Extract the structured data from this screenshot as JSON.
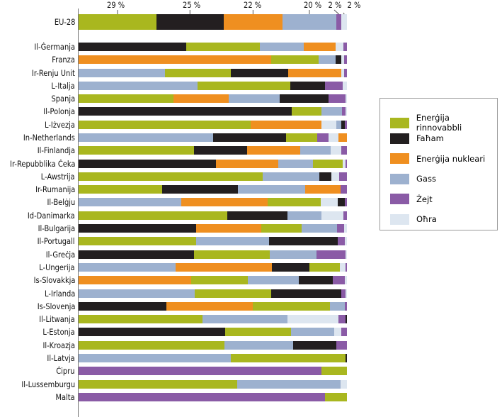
{
  "chart_data": {
    "type": "bar",
    "orientation": "horizontal",
    "stacked": true,
    "xlim": [
      0,
      100
    ],
    "colors": {
      "ren": "#a9b71f",
      "coal": "#231f20",
      "nuc": "#ef8f20",
      "gas": "#9db1cf",
      "oil": "#8a5ba6",
      "oth": "#dde6f0"
    },
    "legend": [
      {
        "key": "ren",
        "label": "Enerġija rinnovabbli"
      },
      {
        "key": "coal",
        "label": "Faħam"
      },
      {
        "key": "nuc",
        "label": "Enerġija nukleari"
      },
      {
        "key": "gas",
        "label": "Gass"
      },
      {
        "key": "oil",
        "label": "Żejt"
      },
      {
        "key": "oth",
        "label": "Oħra"
      }
    ],
    "legend_position": "right",
    "eu": {
      "label": "EU-28",
      "segments": [
        [
          "ren",
          29
        ],
        [
          "coal",
          25
        ],
        [
          "nuc",
          22
        ],
        [
          "gas",
          20
        ],
        [
          "oil",
          2
        ],
        [
          "oth",
          2
        ]
      ],
      "data_labels": [
        "29 %",
        "25 %",
        "22 %",
        "20 %",
        "2 %",
        "2 %"
      ]
    },
    "countries": [
      {
        "label": "Il-Ġermanja",
        "segments": [
          [
            "coal",
            40.2
          ],
          [
            "ren",
            27.4
          ],
          [
            "gas",
            16.3
          ],
          [
            "nuc",
            12.0
          ],
          [
            "oth",
            2.9
          ],
          [
            "oil",
            1.2
          ]
        ]
      },
      {
        "label": "Franza",
        "segments": [
          [
            "nuc",
            71.8
          ],
          [
            "ren",
            17.7
          ],
          [
            "gas",
            6.4
          ],
          [
            "coal",
            2.0
          ],
          [
            "oth",
            1.0
          ],
          [
            "oil",
            1.1
          ]
        ]
      },
      {
        "label": "Ir-Renju Unit",
        "segments": [
          [
            "gas",
            32.2
          ],
          [
            "ren",
            24.6
          ],
          [
            "coal",
            21.4
          ],
          [
            "nuc",
            19.7
          ],
          [
            "oth",
            1.0
          ],
          [
            "oil",
            1.1
          ]
        ]
      },
      {
        "label": "L-Italja",
        "segments": [
          [
            "gas",
            44.2
          ],
          [
            "ren",
            34.8
          ],
          [
            "coal",
            12.9
          ],
          [
            "oil",
            6.6
          ],
          [
            "oth",
            1.5
          ]
        ]
      },
      {
        "label": "Spanja",
        "segments": [
          [
            "ren",
            35.4
          ],
          [
            "nuc",
            20.5
          ],
          [
            "gas",
            19.1
          ],
          [
            "coal",
            18.2
          ],
          [
            "oil",
            6.4
          ],
          [
            "oth",
            0.4
          ]
        ]
      },
      {
        "label": "Il-Polonja",
        "segments": [
          [
            "coal",
            79.5
          ],
          [
            "ren",
            11.1
          ],
          [
            "gas",
            7.6
          ],
          [
            "oil",
            1.4
          ],
          [
            "oth",
            0.4
          ]
        ]
      },
      {
        "label": "L-Iżvezja",
        "segments": [
          [
            "ren",
            64.2
          ],
          [
            "nuc",
            26.4
          ],
          [
            "oth",
            5.5
          ],
          [
            "gas",
            1.9
          ],
          [
            "coal",
            1.2
          ],
          [
            "oil",
            0.8
          ]
        ]
      },
      {
        "label": "In-Netherlands",
        "segments": [
          [
            "gas",
            50.0
          ],
          [
            "coal",
            27.4
          ],
          [
            "ren",
            11.6
          ],
          [
            "oil",
            4.2
          ],
          [
            "oth",
            3.7
          ],
          [
            "nuc",
            3.1
          ]
        ]
      },
      {
        "label": "Il-Finlandja",
        "segments": [
          [
            "ren",
            43.1
          ],
          [
            "coal",
            19.8
          ],
          [
            "nuc",
            19.8
          ],
          [
            "gas",
            11.3
          ],
          [
            "oth",
            4.0
          ],
          [
            "oil",
            2.0
          ]
        ]
      },
      {
        "label": "Ir-Repubblika Ċeka",
        "segments": [
          [
            "coal",
            51.3
          ],
          [
            "nuc",
            23.1
          ],
          [
            "gas",
            13.0
          ],
          [
            "ren",
            11.1
          ],
          [
            "oth",
            1.0
          ],
          [
            "oil",
            0.5
          ]
        ]
      },
      {
        "label": "L-Awstrija",
        "segments": [
          [
            "ren",
            68.7
          ],
          [
            "gas",
            21.1
          ],
          [
            "coal",
            4.5
          ],
          [
            "oth",
            2.9
          ],
          [
            "oil",
            2.8
          ]
        ]
      },
      {
        "label": "Ir-Rumanija",
        "segments": [
          [
            "ren",
            31.2
          ],
          [
            "coal",
            28.3
          ],
          [
            "gas",
            25.0
          ],
          [
            "nuc",
            13.2
          ],
          [
            "oil",
            2.3
          ]
        ]
      },
      {
        "label": "Il-Belġju",
        "segments": [
          [
            "gas",
            38.3
          ],
          [
            "nuc",
            32.2
          ],
          [
            "ren",
            19.8
          ],
          [
            "oth",
            6.4
          ],
          [
            "coal",
            2.6
          ],
          [
            "oil",
            0.7
          ]
        ]
      },
      {
        "label": "Id-Danimarka",
        "segments": [
          [
            "ren",
            55.5
          ],
          [
            "coal",
            22.4
          ],
          [
            "gas",
            12.7
          ],
          [
            "oth",
            8.2
          ],
          [
            "oil",
            1.2
          ]
        ]
      },
      {
        "label": "Il-Bulgarija",
        "segments": [
          [
            "coal",
            43.9
          ],
          [
            "nuc",
            24.3
          ],
          [
            "ren",
            15.0
          ],
          [
            "gas",
            13.2
          ],
          [
            "oil",
            2.5
          ],
          [
            "oth",
            1.1
          ]
        ]
      },
      {
        "label": "Il-Portugall",
        "segments": [
          [
            "ren",
            43.9
          ],
          [
            "gas",
            27.2
          ],
          [
            "coal",
            25.6
          ],
          [
            "oil",
            2.5
          ],
          [
            "oth",
            0.8
          ]
        ]
      },
      {
        "label": "Il-Greċja",
        "segments": [
          [
            "coal",
            43.1
          ],
          [
            "ren",
            28.2
          ],
          [
            "gas",
            17.4
          ],
          [
            "oil",
            10.9
          ],
          [
            "oth",
            0.4
          ]
        ]
      },
      {
        "label": "L-Ungerija",
        "segments": [
          [
            "gas",
            36.2
          ],
          [
            "nuc",
            35.9
          ],
          [
            "coal",
            14.0
          ],
          [
            "ren",
            11.3
          ],
          [
            "oth",
            2.1
          ],
          [
            "oil",
            0.5
          ]
        ]
      },
      {
        "label": "Is-Slovakkja",
        "segments": [
          [
            "nuc",
            42.0
          ],
          [
            "ren",
            21.1
          ],
          [
            "gas",
            19.0
          ],
          [
            "coal",
            12.7
          ],
          [
            "oil",
            4.5
          ],
          [
            "oth",
            0.7
          ]
        ]
      },
      {
        "label": "L-Irlanda",
        "segments": [
          [
            "gas",
            43.4
          ],
          [
            "ren",
            28.5
          ],
          [
            "coal",
            26.1
          ],
          [
            "oil",
            1.6
          ],
          [
            "oth",
            0.4
          ]
        ]
      },
      {
        "label": "Is-Slovenja",
        "segments": [
          [
            "coal",
            32.8
          ],
          [
            "nuc",
            32.2
          ],
          [
            "ren",
            28.8
          ],
          [
            "gas",
            5.5
          ],
          [
            "oil",
            0.7
          ]
        ]
      },
      {
        "label": "Il-Litwanja",
        "segments": [
          [
            "ren",
            46.3
          ],
          [
            "gas",
            31.6
          ],
          [
            "oth",
            19.0
          ],
          [
            "oil",
            2.7
          ],
          [
            "coal",
            0.4
          ]
        ]
      },
      {
        "label": "L-Estonja",
        "segments": [
          [
            "coal",
            54.7
          ],
          [
            "ren",
            24.5
          ],
          [
            "gas",
            16.1
          ],
          [
            "oth",
            2.7
          ],
          [
            "oil",
            2.0
          ]
        ]
      },
      {
        "label": "Il-Kroazja",
        "segments": [
          [
            "ren",
            54.4
          ],
          [
            "gas",
            25.6
          ],
          [
            "coal",
            16.1
          ],
          [
            "oil",
            3.9
          ]
        ]
      },
      {
        "label": "Il-Latvja",
        "segments": [
          [
            "gas",
            56.8
          ],
          [
            "ren",
            42.8
          ],
          [
            "coal",
            0.4
          ]
        ]
      },
      {
        "label": "Ċipru",
        "segments": [
          [
            "oil",
            90.6
          ],
          [
            "ren",
            9.4
          ]
        ]
      },
      {
        "label": "Il-Lussemburgu",
        "segments": [
          [
            "ren",
            59.2
          ],
          [
            "gas",
            38.5
          ],
          [
            "oth",
            2.3
          ]
        ]
      },
      {
        "label": "Malta",
        "segments": [
          [
            "oil",
            91.9
          ],
          [
            "ren",
            8.1
          ]
        ]
      }
    ]
  }
}
